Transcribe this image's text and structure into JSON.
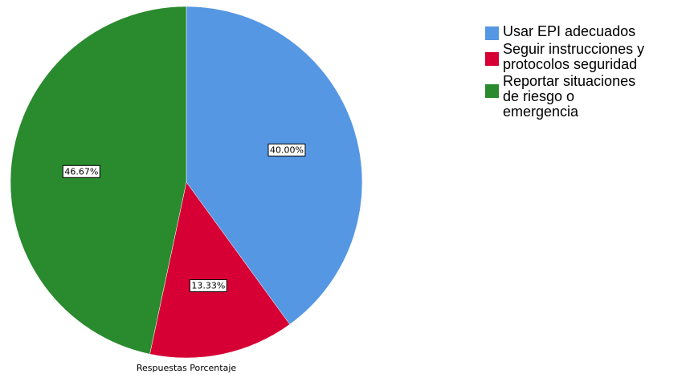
{
  "chart_data": {
    "type": "pie",
    "categories": [
      "Usar EPI adecuados",
      "Seguir instrucciones y protocolos seguridad",
      "Reportar situaciones de riesgo o emergencia"
    ],
    "legend_lines": [
      "Usar EPI adecuados",
      "Seguir instrucciones y\nprotocolos seguridad",
      "Reportar situaciones\nde riesgo o\nemergencia"
    ],
    "values": [
      40.0,
      13.33,
      46.67
    ],
    "data_labels": [
      "40.00%",
      "13.33%",
      "46.67%"
    ],
    "colors": [
      "#5597E3",
      "#D60034",
      "#2A8A2E"
    ],
    "xlabel": "Respuestas Porcentaje",
    "legend_position": "top-right",
    "start_angle": "12 o'clock, clockwise"
  }
}
